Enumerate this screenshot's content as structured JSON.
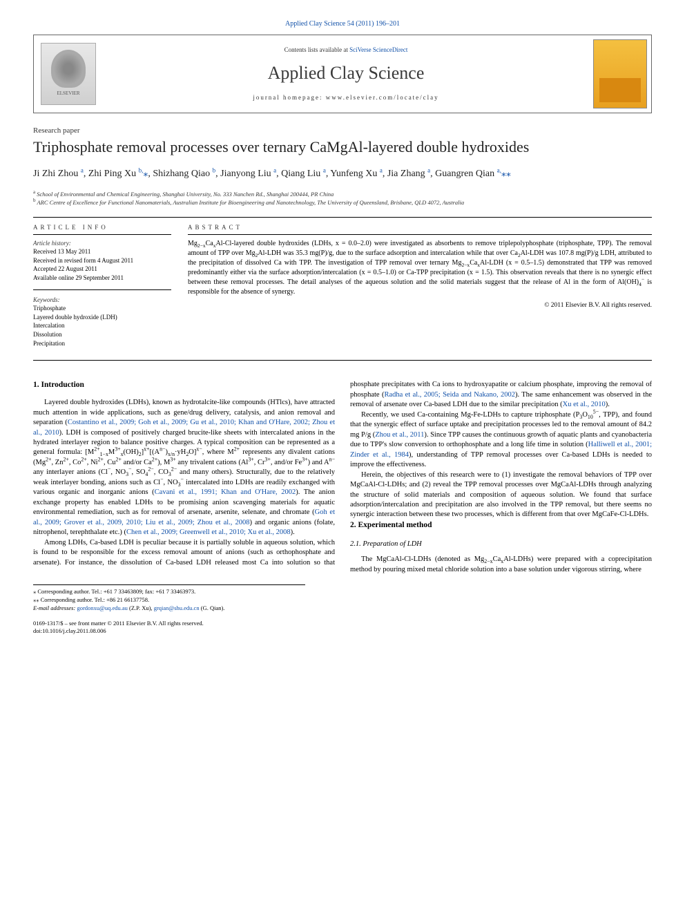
{
  "citation": "Applied Clay Science 54 (2011) 196–201",
  "banner": {
    "contents_prefix": "Contents lists available at ",
    "contents_link": "SciVerse ScienceDirect",
    "journal_name": "Applied Clay Science",
    "homepage_prefix": "journal homepage: ",
    "homepage_url": "www.elsevier.com/locate/clay",
    "publisher": "ELSEVIER"
  },
  "paper_type": "Research paper",
  "title": "Triphosphate removal processes over ternary CaMgAl-layered double hydroxides",
  "authors_html": "Ji Zhi Zhou <sup>a</sup>, Zhi Ping Xu <sup>b,</sup><span class=\"star\">⁎</span>, Shizhang Qiao <sup>b</sup>, Jianyong Liu <sup>a</sup>, Qiang Liu <sup>a</sup>, Yunfeng Xu <sup>a</sup>, Jia Zhang <sup>a</sup>, Guangren Qian <sup>a,</sup><span class=\"star\">⁎⁎</span>",
  "affiliations": {
    "a": "School of Environmental and Chemical Engineering, Shanghai University, No. 333 Nanchen Rd., Shanghai 200444, PR China",
    "b": "ARC Centre of Excellence for Functional Nanomaterials, Australian Institute for Bioengineering and Nanotechnology, The University of Queensland, Brisbane, QLD 4072, Australia"
  },
  "article_info": {
    "heading": "ARTICLE INFO",
    "history_label": "Article history:",
    "history": [
      "Received 13 May 2011",
      "Received in revised form 4 August 2011",
      "Accepted 22 August 2011",
      "Available online 29 September 2011"
    ],
    "keywords_label": "Keywords:",
    "keywords": [
      "Triphosphate",
      "Layered double hydroxide (LDH)",
      "Intercalation",
      "Dissolution",
      "Precipitation"
    ]
  },
  "abstract": {
    "heading": "ABSTRACT",
    "text_html": "Mg<sub>2−x</sub>Ca<sub>x</sub>Al-Cl-layered double hydroxides (LDHs, x = 0.0–2.0) were investigated as absorbents to remove triplepolyphosphate (triphosphate, TPP). The removal amount of TPP over Mg<sub>2</sub>Al-LDH was 35.3 mg(P)/g, due to the surface adsorption and intercalation while that over Ca<sub>2</sub>Al-LDH was 107.8 mg(P)/g LDH, attributed to the precipitation of dissolved Ca with TPP. The investigation of TPP removal over ternary Mg<sub>2−x</sub>Ca<sub>x</sub>Al-LDH (x = 0.5–1.5) demonstrated that TPP was removed predominantly either via the surface adsorption/intercalation (x = 0.5–1.0) or Ca-TPP precipitation (x = 1.5). This observation reveals that there is no synergic effect between these removal processes. The detail analyses of the aqueous solution and the solid materials suggest that the release of Al in the form of Al(OH)<sub>4</sub><sup>−</sup> is responsible for the absence of synergy.",
    "copyright": "© 2011 Elsevier B.V. All rights reserved."
  },
  "body": {
    "section1_heading": "1. Introduction",
    "p1_html": "Layered double hydroxides (LDHs), known as hydrotalcite-like compounds (HTlcs), have attracted much attention in wide applications, such as gene/drug delivery, catalysis, and anion removal and separation (<span class=\"ref-link\">Costantino et al., 2009; Goh et al., 2009; Gu et al., 2010; Khan and O'Hare, 2002; Zhou et al., 2010</span>). LDH is composed of positively charged brucite-like sheets with intercalated anions in the hydrated interlayer region to balance positive charges. A typical composition can be represented as a general formula: [M<sup>2+</sup><sub>1−x</sub>M<sup>3+</sup><sub>x</sub>(OH)<sub>2</sub>]<sup>x+</sup>[(A<sup>n−</sup>)<sub>x/n</sub>·yH<sub>2</sub>O]<sup>x−</sup>, where M<sup>2+</sup> represents any divalent cations (Mg<sup>2+</sup>, Zn<sup>2+</sup>, Co<sup>2+</sup>, Ni<sup>2+</sup>, Cu<sup>2+</sup> and/or Ca<sup>2+</sup>), M<sup>3+</sup> any trivalent cations (Al<sup>3+</sup>, Cr<sup>3+</sup>, and/or Fe<sup>3+</sup>) and A<sup>n−</sup> any interlayer anions (Cl<sup>−</sup>, NO<sub>3</sub><sup>−</sup>, SO<sub>4</sub><sup>2−</sup>, CO<sub>3</sub><sup>2−</sup> and many others). Structurally, due to the relatively weak interlayer bonding, anions such as Cl<sup>−</sup>, NO<sub>3</sub><sup>−</sup> intercalated into LDHs are readily exchanged with various organic and inorganic anions (<span class=\"ref-link\">Cavani et al., 1991; Khan and O'Hare, 2002</span>). The anion exchange property has enabled LDHs to be promising anion scavenging materials for aquatic environmental remediation, such as for removal of arsenate, arsenite, selenate, and chromate (<span class=\"ref-link\">Goh et al., 2009; Grover et al., 2009, 2010; Liu et al., 2009; Zhou et al., 2008</span>) and organic anions (folate, nitrophenol, terephthalate etc.) (<span class=\"ref-link\">Chen et al., 2009; Greenwell et al., 2010; Xu et al., 2008</span>).",
    "p2_html": "Among LDHs, Ca-based LDH is peculiar because it is partially soluble in aqueous solution, which is found to be responsible for the excess removal amount of anions (such as orthophosphate and arsenate). For instance, the dissolution of Ca-based LDH released most Ca into solution so that phosphate precipitates with Ca ions to hydroxyapatite or calcium phosphate, improving the removal of phosphate (<span class=\"ref-link\">Radha et al., 2005; Seida and Nakano, 2002</span>). The same enhancement was observed in the removal of arsenate over Ca-based LDH due to the similar precipitation (<span class=\"ref-link\">Xu et al., 2010</span>).",
    "p3_html": "Recently, we used Ca-containing Mg-Fe-LDHs to capture triphosphate (P<sub>3</sub>O<sub>10</sub><sup>5−</sup>, TPP), and found that the synergic effect of surface uptake and precipitation processes led to the removal amount of 84.2 mg P/g (<span class=\"ref-link\">Zhou et al., 2011</span>). Since TPP causes the continuous growth of aquatic plants and cyanobacteria due to TPP's slow conversion to orthophosphate and a long life time in solution (<span class=\"ref-link\">Halliwell et al., 2001; Zinder et al., 1984</span>), understanding of TPP removal processes over Ca-based LDHs is needed to improve the effectiveness.",
    "p4_html": "Herein, the objectives of this research were to (1) investigate the removal behaviors of TPP over MgCaAl-Cl-LDHs; and (2) reveal the TPP removal processes over MgCaAl-LDHs through analyzing the structure of solid materials and composition of aqueous solution. We found that surface adsorption/intercalation and precipitation are also involved in the TPP removal, but there seems no synergic interaction between these two processes, which is different from that over MgCaFe-Cl-LDHs.",
    "section2_heading": "2. Experimental method",
    "section21_heading": "2.1. Preparation of LDH",
    "p5_html": "The MgCaAl-Cl-LDHs (denoted as Mg<sub>2−x</sub>Ca<sub>x</sub>Al-LDHs) were prepared with a coprecipitation method by pouring mixed metal chloride solution into a base solution under vigorous stirring, where"
  },
  "footnotes": {
    "corr1": "⁎ Corresponding author. Tel.: +61 7 33463809; fax: +61 7 33463973.",
    "corr2": "⁎⁎ Corresponding author. Tel.: +86 21 66137758.",
    "emails_label": "E-mail addresses:",
    "email1": "gordonxu@uq.edu.au",
    "email1_name": "(Z.P. Xu),",
    "email2": "grqian@shu.edu.cn",
    "email2_name": "(G. Qian)."
  },
  "footer": {
    "line1": "0169-1317/$ – see front matter © 2011 Elsevier B.V. All rights reserved.",
    "line2": "doi:10.1016/j.clay.2011.08.006"
  },
  "colors": {
    "link": "#1050a8",
    "text": "#000000",
    "rule": "#000000"
  }
}
